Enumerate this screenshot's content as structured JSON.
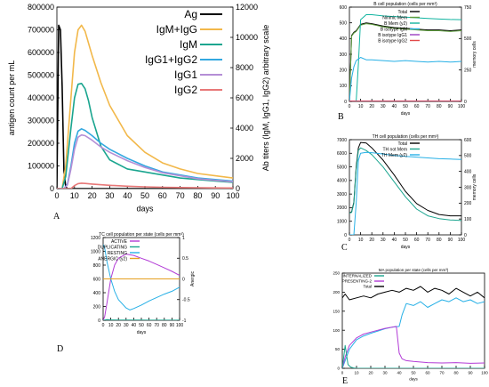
{
  "figure": {
    "panels": [
      "A",
      "B",
      "C",
      "D",
      "E"
    ]
  },
  "chart_data": [
    {
      "panel": "A",
      "type": "line",
      "title": "",
      "xlabel": "days",
      "ylabel": "antigen count per mL",
      "ylabel_right": "Ab titers (IgM, IgG1, IgG2) arbitrary scale",
      "xlim": [
        0,
        100
      ],
      "ylim": [
        0,
        800000
      ],
      "ylim_right": [
        0,
        12000
      ],
      "x_ticks": [
        0,
        10,
        20,
        30,
        40,
        50,
        60,
        70,
        80,
        90,
        100
      ],
      "y_ticks": [
        "0",
        "100000",
        "200000",
        "300000",
        "400000",
        "500000",
        "600000",
        "700000",
        "800000"
      ],
      "y_ticks_right": [
        "0",
        "2000",
        "4000",
        "6000",
        "8000",
        "10000",
        "12000"
      ],
      "legend_position": "top-right",
      "colors": {
        "Ag": "#000000",
        "IgM+IgG": "#f2b84a",
        "IgM": "#1aa58f",
        "IgG1+IgG2": "#33a8e0",
        "IgG1": "#b58ed6",
        "IgG2": "#e87878"
      },
      "series": [
        {
          "name": "Ag",
          "axis": "left",
          "x": [
            0,
            1,
            2,
            3,
            4,
            5,
            6,
            100
          ],
          "y": [
            0,
            720000,
            700000,
            450000,
            80000,
            8000,
            0,
            0
          ]
        },
        {
          "name": "IgM+IgG",
          "axis": "right",
          "x": [
            0,
            3,
            5,
            8,
            10,
            12,
            14,
            16,
            20,
            25,
            30,
            40,
            50,
            60,
            70,
            80,
            90,
            100
          ],
          "y": [
            0,
            0,
            1500,
            6000,
            9000,
            10500,
            10800,
            10400,
            8800,
            7000,
            5500,
            3500,
            2400,
            1700,
            1300,
            1000,
            850,
            700
          ]
        },
        {
          "name": "IgM",
          "axis": "right",
          "x": [
            0,
            3,
            5,
            8,
            10,
            12,
            14,
            16,
            18,
            20,
            25,
            30,
            40,
            50,
            60,
            70,
            80,
            90,
            100
          ],
          "y": [
            0,
            0,
            800,
            4000,
            6000,
            6900,
            6950,
            6600,
            5800,
            4700,
            2800,
            1900,
            1300,
            1100,
            900,
            700,
            600,
            500,
            420
          ]
        },
        {
          "name": "IgG1+IgG2",
          "axis": "right",
          "x": [
            0,
            4,
            6,
            8,
            10,
            12,
            14,
            16,
            20,
            25,
            30,
            40,
            50,
            60,
            70,
            80,
            90,
            100
          ],
          "y": [
            0,
            0,
            300,
            1500,
            3000,
            3800,
            3950,
            3850,
            3500,
            3000,
            2600,
            2000,
            1500,
            1100,
            900,
            700,
            600,
            500
          ]
        },
        {
          "name": "IgG1",
          "axis": "right",
          "x": [
            0,
            4,
            6,
            8,
            10,
            12,
            14,
            16,
            20,
            25,
            30,
            40,
            50,
            60,
            70,
            80,
            90,
            100
          ],
          "y": [
            0,
            0,
            250,
            1300,
            2600,
            3400,
            3550,
            3500,
            3200,
            2750,
            2400,
            1850,
            1400,
            1050,
            850,
            650,
            550,
            450
          ]
        },
        {
          "name": "IgG2",
          "axis": "right",
          "x": [
            0,
            8,
            10,
            12,
            14,
            16,
            20,
            30,
            40,
            50,
            60,
            70,
            80,
            90,
            100
          ],
          "y": [
            0,
            0,
            200,
            330,
            360,
            340,
            300,
            220,
            160,
            120,
            90,
            70,
            60,
            50,
            40
          ]
        }
      ]
    },
    {
      "panel": "B",
      "type": "line",
      "title": "B cell population (cells per mm³)",
      "xlabel": "days",
      "ylabel": "",
      "ylabel_right": "memory cells",
      "xlim": [
        0,
        100
      ],
      "ylim": [
        0,
        600
      ],
      "ylim_right": [
        0,
        750
      ],
      "x_ticks": [
        0,
        10,
        20,
        30,
        40,
        50,
        60,
        70,
        80,
        90,
        100
      ],
      "y_ticks": [
        "0",
        "100",
        "200",
        "300",
        "400",
        "500",
        "600"
      ],
      "y_ticks_right": [
        "0",
        "250",
        "500",
        "750"
      ],
      "legend": [
        "Total",
        "Ninmic Mem",
        "B Mem (y2)",
        "B isotype IgM",
        "B isotype IgG1",
        "B isotype IgG2"
      ],
      "colors": {
        "Total": "#000000",
        "Ninmic Mem": "#5e9e3e",
        "B Mem (y2)": "#10b4a0",
        "B isotype IgM": "#27b0e6",
        "B isotype IgG1": "#9b3fc0",
        "B isotype IgG2": "#e24a4a"
      },
      "series": [
        {
          "name": "Total",
          "axis": "left",
          "x": [
            0,
            2,
            4,
            6,
            8,
            10,
            15,
            20,
            30,
            40,
            50,
            60,
            70,
            80,
            90,
            100
          ],
          "y": [
            0,
            420,
            440,
            450,
            470,
            490,
            500,
            495,
            480,
            470,
            465,
            460,
            455,
            455,
            450,
            455
          ]
        },
        {
          "name": "Ninmic Mem",
          "axis": "left",
          "x": [
            0,
            2,
            4,
            6,
            8,
            10,
            15,
            20,
            30,
            40,
            50,
            60,
            70,
            80,
            90,
            100
          ],
          "y": [
            0,
            415,
            435,
            445,
            465,
            485,
            495,
            490,
            475,
            465,
            460,
            455,
            450,
            450,
            445,
            450
          ]
        },
        {
          "name": "B Mem (y2)",
          "axis": "right",
          "x": [
            0,
            6,
            8,
            10,
            15,
            20,
            30,
            40,
            50,
            60,
            70,
            80,
            90,
            100
          ],
          "y": [
            0,
            0,
            300,
            650,
            690,
            690,
            680,
            675,
            670,
            665,
            660,
            655,
            652,
            650
          ]
        },
        {
          "name": "B isotype IgM",
          "axis": "left",
          "x": [
            0,
            2,
            4,
            6,
            8,
            10,
            15,
            20,
            30,
            40,
            50,
            60,
            70,
            80,
            90,
            100
          ],
          "y": [
            0,
            150,
            220,
            260,
            270,
            280,
            265,
            265,
            260,
            255,
            260,
            255,
            250,
            255,
            250,
            255
          ]
        },
        {
          "name": "B isotype IgG1",
          "axis": "left",
          "x": [
            0,
            10,
            20,
            30,
            40,
            50,
            60,
            70,
            80,
            90,
            100
          ],
          "y": [
            3,
            3,
            3,
            3,
            3,
            3,
            3,
            3,
            3,
            3,
            3
          ]
        },
        {
          "name": "B isotype IgG2",
          "axis": "left",
          "x": [
            0,
            10,
            20,
            30,
            40,
            50,
            60,
            70,
            80,
            90,
            100
          ],
          "y": [
            1,
            1,
            1,
            1,
            1,
            1,
            1,
            1,
            1,
            1,
            1
          ]
        }
      ]
    },
    {
      "panel": "C",
      "type": "line",
      "title": "TH cell population (cells per mm³)",
      "xlabel": "days",
      "ylabel": "",
      "ylabel_right": "memory cells",
      "xlim": [
        0,
        100
      ],
      "ylim": [
        0,
        7000
      ],
      "ylim_right": [
        0,
        600
      ],
      "x_ticks": [
        0,
        10,
        20,
        30,
        40,
        50,
        60,
        70,
        80,
        90,
        100
      ],
      "y_ticks": [
        "0",
        "1000",
        "2000",
        "3000",
        "4000",
        "5000",
        "6000",
        "7000"
      ],
      "y_ticks_right": [
        "0",
        "100",
        "200",
        "300",
        "400",
        "500",
        "600"
      ],
      "legend": [
        "Total",
        "TH not Mem",
        "TH Mem (y2)"
      ],
      "colors": {
        "Total": "#000000",
        "TH not Mem": "#1aa58f",
        "TH Mem (y2)": "#27b0e6"
      },
      "series": [
        {
          "name": "Total",
          "axis": "left",
          "x": [
            0,
            2,
            4,
            6,
            8,
            10,
            15,
            20,
            30,
            40,
            50,
            60,
            70,
            80,
            90,
            100
          ],
          "y": [
            1600,
            1700,
            2400,
            5000,
            6400,
            6800,
            6750,
            6400,
            5500,
            4400,
            3200,
            2300,
            1800,
            1500,
            1400,
            1400
          ]
        },
        {
          "name": "TH not Mem",
          "axis": "left",
          "x": [
            0,
            2,
            4,
            6,
            8,
            10,
            15,
            20,
            30,
            40,
            50,
            60,
            70,
            80,
            90,
            100
          ],
          "y": [
            1600,
            1650,
            2300,
            4800,
            6200,
            6400,
            6200,
            5900,
            5000,
            3900,
            2800,
            1900,
            1400,
            1200,
            1100,
            1050
          ]
        },
        {
          "name": "TH Mem (y2)",
          "axis": "right",
          "x": [
            0,
            4,
            6,
            8,
            10,
            15,
            20,
            30,
            40,
            50,
            60,
            70,
            80,
            90,
            100
          ],
          "y": [
            0,
            0,
            200,
            470,
            515,
            520,
            518,
            510,
            500,
            495,
            490,
            485,
            480,
            478,
            475
          ]
        }
      ]
    },
    {
      "panel": "D",
      "type": "line",
      "title": "TC cell population per state (cells per mm³)",
      "xlabel": "days",
      "ylabel": "",
      "ylabel_right": "Anergic",
      "xlim": [
        0,
        100
      ],
      "ylim": [
        0,
        1200
      ],
      "ylim_right": [
        -1,
        1
      ],
      "x_ticks": [
        0,
        10,
        20,
        30,
        40,
        50,
        60,
        70,
        80,
        90,
        100
      ],
      "y_ticks": [
        "0",
        "200",
        "400",
        "600",
        "800",
        "1000",
        "1200"
      ],
      "y_ticks_right": [
        "-1",
        "-0.5",
        "0",
        "0.5",
        "1"
      ],
      "legend": [
        "ACTIVE",
        "DUPLICATING",
        "RESTING",
        "ANERGIC (y2)"
      ],
      "colors": {
        "ACTIVE": "#b23bd6",
        "DUPLICATING": "#1aa58f",
        "RESTING": "#27b0e6",
        "ANERGIC (y2)": "#e6a020"
      },
      "series": [
        {
          "name": "ACTIVE",
          "axis": "left",
          "x": [
            0,
            2,
            5,
            10,
            15,
            20,
            30,
            40,
            50,
            60,
            70,
            80,
            90,
            100
          ],
          "y": [
            0,
            50,
            250,
            600,
            800,
            900,
            960,
            940,
            900,
            860,
            810,
            760,
            710,
            650
          ]
        },
        {
          "name": "DUPLICATING",
          "axis": "left",
          "x": [
            0,
            5,
            10,
            20,
            30,
            40,
            50,
            60,
            70,
            80,
            90,
            100
          ],
          "y": [
            0,
            10,
            5,
            3,
            2,
            2,
            2,
            1,
            1,
            1,
            1,
            1
          ]
        },
        {
          "name": "RESTING",
          "axis": "left",
          "x": [
            0,
            2,
            5,
            10,
            15,
            20,
            30,
            35,
            40,
            50,
            60,
            70,
            80,
            90,
            100
          ],
          "y": [
            1100,
            1050,
            850,
            600,
            420,
            300,
            180,
            150,
            170,
            220,
            280,
            330,
            380,
            420,
            480
          ]
        },
        {
          "name": "ANERGIC (y2)",
          "axis": "right",
          "x": [
            0,
            100
          ],
          "y": [
            0,
            0
          ]
        }
      ]
    },
    {
      "panel": "E",
      "type": "line",
      "title": "MA population per state (cells per mm³)",
      "xlabel": "days",
      "ylabel": "",
      "xlim": [
        0,
        100
      ],
      "ylim": [
        0,
        250
      ],
      "x_ticks": [
        0,
        10,
        20,
        30,
        40,
        50,
        60,
        70,
        80,
        90,
        100
      ],
      "y_ticks": [
        "0",
        "50",
        "100",
        "150",
        "200",
        "250"
      ],
      "legend": [
        "INTERNALIZED",
        "PRESENTING-2",
        "Total"
      ],
      "colors": {
        "INTERNALIZED": "#1aa58f",
        "PRESENTING-2": "#b23bd6",
        "Total": "#000000",
        "ACTIVE": "#27b0e6"
      },
      "series": [
        {
          "name": "Total",
          "x": [
            0,
            2,
            5,
            10,
            15,
            20,
            25,
            30,
            35,
            40,
            45,
            50,
            55,
            60,
            65,
            70,
            75,
            80,
            85,
            90,
            95,
            100
          ],
          "y": [
            185,
            195,
            180,
            185,
            190,
            185,
            195,
            200,
            205,
            200,
            210,
            205,
            215,
            200,
            210,
            205,
            195,
            210,
            200,
            190,
            200,
            185
          ]
        },
        {
          "name": "ACTIVE",
          "x": [
            0,
            2,
            5,
            10,
            15,
            20,
            25,
            30,
            35,
            40,
            42,
            45,
            50,
            55,
            60,
            65,
            70,
            75,
            80,
            85,
            90,
            95,
            100
          ],
          "y": [
            0,
            20,
            50,
            75,
            85,
            92,
            98,
            104,
            108,
            110,
            140,
            170,
            165,
            175,
            160,
            170,
            180,
            175,
            185,
            175,
            180,
            170,
            175
          ]
        },
        {
          "name": "PRESENTING-2",
          "x": [
            0,
            2,
            5,
            10,
            15,
            20,
            25,
            30,
            35,
            38,
            40,
            42,
            45,
            50,
            60,
            70,
            80,
            90,
            100
          ],
          "y": [
            0,
            30,
            60,
            80,
            90,
            95,
            100,
            105,
            108,
            110,
            40,
            25,
            20,
            18,
            15,
            14,
            15,
            13,
            14
          ]
        },
        {
          "name": "INTERNALIZED",
          "x": [
            0,
            2,
            4,
            6,
            8,
            10,
            20,
            100
          ],
          "y": [
            0,
            60,
            10,
            3,
            1,
            0,
            0,
            0
          ]
        }
      ]
    }
  ]
}
